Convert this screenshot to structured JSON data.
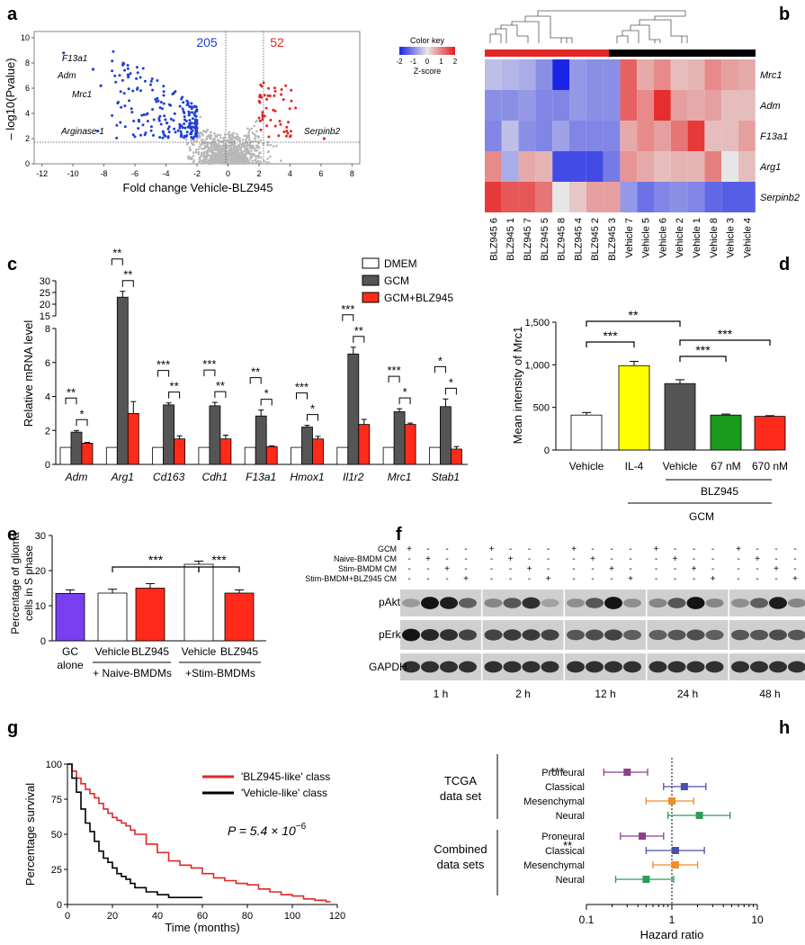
{
  "panels": {
    "a": {
      "letter": "a",
      "ylabel": "– log10(Pvalue)",
      "xlabel": "Fold change Vehicle-BLZ945",
      "down_count": "205",
      "up_count": "52",
      "labels": [
        "F13a1",
        "Adm",
        "Mrc1",
        "Arginase 1",
        "Serpinb2"
      ],
      "xticks": [
        "-12",
        "-10",
        "-8",
        "-6",
        "-4",
        "-2",
        "0",
        "2",
        "4",
        "6",
        "8"
      ],
      "yticks": [
        "0",
        "2",
        "4",
        "6",
        "8",
        "10"
      ],
      "colors": {
        "down": "#1f3fd6",
        "up": "#e32626",
        "ns": "#b8b8b8"
      }
    },
    "b": {
      "letter": "b",
      "key_title": "Color key",
      "key_sub": "Z-score",
      "key_ticks": [
        "-2",
        "-1",
        "0",
        "1",
        "2"
      ],
      "columns": [
        "BLZ945 6",
        "BLZ945 1",
        "BLZ945 7",
        "BLZ945 5",
        "BLZ945 8",
        "BLZ945 4",
        "BLZ945 2",
        "BLZ945 3",
        "Vehicle 7",
        "Vehicle 5",
        "Vehicle 6",
        "Vehicle 2",
        "Vehicle 1",
        "Vehicle 8",
        "Vehicle 3",
        "Vehicle 4"
      ],
      "rows": [
        "Mrc1",
        "Adm",
        "F13a1",
        "Arg1",
        "Serpinb2"
      ]
    },
    "c": {
      "letter": "c",
      "ylabel": "Relative mRNA level",
      "legend": [
        "DMEM",
        "GCM",
        "GCM+BLZ945"
      ],
      "genes": [
        "Adm",
        "Arg1",
        "Cd163",
        "Cdh1",
        "F13a1",
        "Hmox1",
        "Il1r2",
        "Mrc1",
        "Stab1"
      ],
      "yticks_lower": [
        "0",
        "2",
        "4",
        "6",
        "8"
      ],
      "yticks_upper": [
        "15",
        "20",
        "25",
        "30"
      ],
      "sig_left": [
        "**",
        "**",
        "***",
        "***",
        "**",
        "***",
        "***",
        "***",
        "*"
      ],
      "sig_right": [
        "*",
        "**",
        "**",
        "**",
        "*",
        "*",
        "**",
        "*",
        "*"
      ]
    },
    "d": {
      "letter": "d",
      "ylabel": "Mean intensity of Mrc1",
      "yticks": [
        "0",
        "500",
        "1,000",
        "1,500"
      ],
      "categories": [
        "Vehicle",
        "IL-4",
        "Vehicle",
        "67 nM",
        "670 nM"
      ],
      "group1": "BLZ945",
      "group2": "GCM",
      "sig": [
        "***",
        "**",
        "***",
        "***"
      ]
    },
    "e": {
      "letter": "e",
      "ylabel": "Percentage of glioma cells in S phase",
      "yticks": [
        "0",
        "10",
        "20",
        "30"
      ],
      "cat1a": "GC",
      "cat1b": "alone",
      "categories": [
        "Vehicle",
        "BLZ945",
        "Vehicle",
        "BLZ945"
      ],
      "group1": "+ Naive-BMDMs",
      "group2": "+Stim-BMDMs",
      "sig": [
        "***",
        "***"
      ]
    },
    "f": {
      "letter": "f",
      "rows": [
        "GCM",
        "Naive-BMDM CM",
        "Stim-BMDM CM",
        "Stim-BMDM+BLZ945 CM"
      ],
      "blots": [
        "pAkt",
        "pErk",
        "GAPDH"
      ],
      "times": [
        "1 h",
        "2 h",
        "12 h",
        "24 h",
        "48 h"
      ],
      "signs": [
        [
          "+",
          "-",
          "-",
          "-"
        ],
        [
          "-",
          "+",
          "-",
          "-"
        ],
        [
          "-",
          "-",
          "+",
          "-"
        ],
        [
          "-",
          "-",
          "-",
          "+"
        ]
      ]
    },
    "g": {
      "letter": "g",
      "ylabel": "Percentage survival",
      "xlabel": "Time (months)",
      "xticks": [
        "0",
        "20",
        "40",
        "60",
        "80",
        "100",
        "120"
      ],
      "yticks": [
        "0",
        "25",
        "50",
        "75",
        "100"
      ],
      "legend": [
        "'BLZ945-like' class",
        "'Vehicle-like' class"
      ],
      "pvalue_prefix": "P = 5.4 × 10",
      "pvalue_exp": "−6",
      "colors": {
        "blz": "#e32626",
        "veh": "#000000"
      }
    },
    "h": {
      "letter": "h",
      "group1a": "TCGA",
      "group1b": "data set",
      "group2a": "Combined",
      "group2b": "data sets",
      "rows": [
        "Proneural",
        "Classical",
        "Mesenchymal",
        "Neural",
        "Proneural",
        "Classical",
        "Mesenchymal",
        "Neural"
      ],
      "xlabel": "Hazard ratio",
      "xticks": [
        "0.1",
        "1",
        "10"
      ],
      "sig": [
        "***",
        "**"
      ]
    }
  },
  "chart_data": [
    {
      "panel": "a",
      "type": "scatter",
      "xlabel": "Fold change Vehicle-BLZ945",
      "ylabel": "– log10(Pvalue)",
      "xlim": [
        -12.5,
        8.5
      ],
      "ylim": [
        0,
        10.5
      ],
      "thresholds": {
        "x": [
          -2,
          2
        ],
        "y": 2
      },
      "down_count": 205,
      "up_count": 52,
      "labeled_points": [
        {
          "label": "F13a1",
          "x": -10.6,
          "y": 8.8
        },
        {
          "label": "Adm",
          "x": -8.7,
          "y": 7.5
        },
        {
          "label": "Mrc1",
          "x": -8.2,
          "y": 6.2
        },
        {
          "label": "Arginase 1",
          "x": -8.4,
          "y": 2.6
        },
        {
          "label": "Serpinb2",
          "x": 6.2,
          "y": 2.0
        }
      ]
    },
    {
      "panel": "b",
      "type": "heatmap",
      "columns": [
        "BLZ945 6",
        "BLZ945 1",
        "BLZ945 7",
        "BLZ945 5",
        "BLZ945 8",
        "BLZ945 4",
        "BLZ945 2",
        "BLZ945 3",
        "Vehicle 7",
        "Vehicle 5",
        "Vehicle 6",
        "Vehicle 2",
        "Vehicle 1",
        "Vehicle 8",
        "Vehicle 3",
        "Vehicle 4"
      ],
      "rows": [
        "Mrc1",
        "Adm",
        "F13a1",
        "Arg1",
        "Serpinb2"
      ],
      "z_range": [
        -2,
        2
      ],
      "values": [
        [
          -0.4,
          -0.5,
          -0.6,
          -0.9,
          -2.0,
          -0.8,
          -0.9,
          -0.9,
          1.3,
          0.6,
          0.9,
          0.4,
          0.5,
          0.9,
          0.7,
          0.6
        ],
        [
          -0.9,
          -0.9,
          -0.8,
          -1.0,
          -1.0,
          -0.8,
          -0.9,
          -0.9,
          1.3,
          0.9,
          1.8,
          0.7,
          0.6,
          0.7,
          0.4,
          0.4
        ],
        [
          -1.0,
          -0.4,
          -0.9,
          -1.0,
          -0.7,
          -1.0,
          -1.0,
          -1.0,
          0.6,
          0.9,
          0.7,
          1.1,
          1.7,
          0.4,
          0.4,
          0.7
        ],
        [
          0.9,
          -0.6,
          0.6,
          0.5,
          -1.6,
          -1.6,
          -1.6,
          -1.1,
          0.8,
          0.6,
          0.4,
          0.5,
          0.5,
          1.0,
          0.0,
          0.4
        ],
        [
          1.7,
          1.4,
          1.4,
          1.1,
          0.0,
          0.3,
          0.7,
          0.7,
          -0.8,
          -1.2,
          -1.0,
          -0.9,
          -1.0,
          -1.3,
          -1.4,
          -1.4
        ]
      ]
    },
    {
      "panel": "c",
      "type": "bar",
      "ylabel": "Relative mRNA level",
      "categories": [
        "Adm",
        "Arg1",
        "Cd163",
        "Cdh1",
        "F13a1",
        "Hmox1",
        "Il1r2",
        "Mrc1",
        "Stab1"
      ],
      "series": [
        {
          "name": "DMEM",
          "values": [
            1,
            1,
            1,
            1,
            1,
            1,
            1,
            1,
            1
          ],
          "errors": [
            0,
            0,
            0,
            0,
            0,
            0,
            0,
            0,
            0
          ]
        },
        {
          "name": "GCM",
          "values": [
            1.9,
            23.0,
            3.5,
            3.45,
            2.85,
            2.2,
            6.5,
            3.1,
            3.4
          ],
          "errors": [
            0.1,
            2.5,
            0.12,
            0.2,
            0.35,
            0.1,
            0.4,
            0.18,
            0.45
          ]
        },
        {
          "name": "GCM+BLZ945",
          "values": [
            1.25,
            3.0,
            1.5,
            1.5,
            1.05,
            1.5,
            2.35,
            2.35,
            0.9
          ],
          "errors": [
            0.05,
            0.7,
            0.18,
            0.22,
            0.04,
            0.15,
            0.3,
            0.08,
            0.15
          ]
        }
      ],
      "y_broken": true,
      "ylim_lower": [
        0,
        8
      ],
      "ylim_upper": [
        15,
        30
      ]
    },
    {
      "panel": "d",
      "type": "bar",
      "ylabel": "Mean intensity of Mrc1",
      "categories": [
        "Vehicle",
        "IL-4",
        "Vehicle",
        "67 nM",
        "670 nM"
      ],
      "values": [
        410,
        990,
        780,
        410,
        395
      ],
      "errors": [
        30,
        50,
        45,
        12,
        8
      ],
      "colors": [
        "#ffffff",
        "#ffff00",
        "#555555",
        "#1a9a1a",
        "#ff2a1a"
      ],
      "ylim": [
        0,
        1500
      ]
    },
    {
      "panel": "e",
      "type": "bar",
      "ylabel": "Percentage of glioma cells in S phase",
      "categories": [
        "GC alone",
        "Vehicle",
        "BLZ945",
        "Vehicle",
        "BLZ945"
      ],
      "values": [
        13.5,
        13.6,
        15.0,
        21.8,
        13.6
      ],
      "errors": [
        1.0,
        1.1,
        1.3,
        0.9,
        0.9
      ],
      "colors": [
        "#7b3ff2",
        "#ffffff",
        "#ff2a1a",
        "#ffffff",
        "#ff2a1a"
      ],
      "ylim": [
        0,
        30
      ]
    },
    {
      "panel": "g",
      "type": "line",
      "xlabel": "Time (months)",
      "ylabel": "Percentage survival",
      "xlim": [
        0,
        120
      ],
      "ylim": [
        0,
        100
      ],
      "series": [
        {
          "name": "'BLZ945-like' class",
          "x": [
            0,
            2,
            4,
            6,
            8,
            10,
            12,
            14,
            16,
            18,
            20,
            22,
            24,
            26,
            28,
            30,
            35,
            40,
            45,
            50,
            55,
            60,
            65,
            70,
            75,
            80,
            85,
            90,
            95,
            100,
            105,
            110,
            115,
            117
          ],
          "y": [
            100,
            95,
            90,
            86,
            82,
            79,
            76,
            72,
            68,
            65,
            62,
            60,
            58,
            56,
            53,
            50,
            43,
            37,
            31,
            28,
            26,
            22,
            19,
            17,
            15,
            14,
            11,
            9,
            7,
            6,
            4,
            3,
            2,
            2
          ]
        },
        {
          "name": "'Vehicle-like' class",
          "x": [
            0,
            2,
            4,
            6,
            8,
            10,
            12,
            14,
            16,
            18,
            20,
            22,
            24,
            26,
            28,
            30,
            35,
            40,
            45,
            50,
            55,
            60
          ],
          "y": [
            100,
            90,
            80,
            68,
            58,
            52,
            45,
            38,
            33,
            30,
            26,
            22,
            20,
            18,
            15,
            12,
            9,
            7,
            5,
            5,
            5,
            5
          ]
        }
      ],
      "pvalue": "P = 5.4 × 10−6"
    },
    {
      "panel": "h",
      "type": "scatter",
      "xlabel": "Hazard ratio",
      "xscale": "log",
      "xlim": [
        0.1,
        10
      ],
      "rows": [
        {
          "group": "TCGA data set",
          "subtype": "Proneural",
          "hr": 0.3,
          "lo": 0.16,
          "hi": 0.52
        },
        {
          "group": "TCGA data set",
          "subtype": "Classical",
          "hr": 1.4,
          "lo": 0.8,
          "hi": 2.5
        },
        {
          "group": "TCGA data set",
          "subtype": "Mesenchymal",
          "hr": 1.0,
          "lo": 0.5,
          "hi": 1.8
        },
        {
          "group": "TCGA data set",
          "subtype": "Neural",
          "hr": 2.1,
          "lo": 0.9,
          "hi": 4.8
        },
        {
          "group": "Combined data sets",
          "subtype": "Proneural",
          "hr": 0.45,
          "lo": 0.25,
          "hi": 0.8
        },
        {
          "group": "Combined data sets",
          "subtype": "Classical",
          "hr": 1.1,
          "lo": 0.5,
          "hi": 2.4
        },
        {
          "group": "Combined data sets",
          "subtype": "Mesenchymal",
          "hr": 1.1,
          "lo": 0.6,
          "hi": 2.0
        },
        {
          "group": "Combined data sets",
          "subtype": "Neural",
          "hr": 0.5,
          "lo": 0.22,
          "hi": 1.05
        }
      ],
      "colors": {
        "Proneural": "#8e3f8c",
        "Classical": "#4b4fa6",
        "Mesenchymal": "#f08c2a",
        "Neural": "#2f9a5a"
      }
    }
  ]
}
